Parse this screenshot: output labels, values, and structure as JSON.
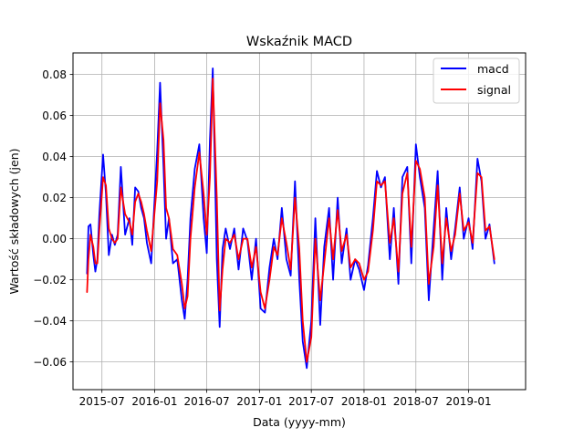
{
  "chart_data": {
    "type": "line",
    "title": "Wskaźnik MACD",
    "xlabel": "Data (yyyy-mm)",
    "ylabel": "Wartość składowych (jen)",
    "xlim": [
      "2015-03-22",
      "2019-07-19"
    ],
    "ylim": [
      -0.0735,
      0.0905
    ],
    "x_ticks": [
      "2015-07-01",
      "2016-01-01",
      "2016-07-01",
      "2017-01-01",
      "2017-07-01",
      "2018-01-01",
      "2018-07-01",
      "2019-01-01"
    ],
    "x_tick_labels": [
      "2015-07",
      "2016-01",
      "2016-07",
      "2017-01",
      "2017-07",
      "2018-01",
      "2018-07",
      "2019-01"
    ],
    "y_ticks": [
      -0.06,
      -0.04,
      -0.02,
      0.0,
      0.02,
      0.04,
      0.06,
      0.08
    ],
    "y_tick_labels": [
      "−0.06",
      "−0.04",
      "−0.02",
      "0.00",
      "0.02",
      "0.04",
      "0.06",
      "0.08"
    ],
    "grid": true,
    "legend_position": "top-right",
    "series": [
      {
        "name": "macd",
        "color": "#0000ff",
        "x": [
          "2015-05-10",
          "2015-05-15",
          "2015-05-22",
          "2015-06-01",
          "2015-06-08",
          "2015-06-15",
          "2015-06-22",
          "2015-07-05",
          "2015-07-15",
          "2015-07-25",
          "2015-08-05",
          "2015-08-15",
          "2015-08-25",
          "2015-09-05",
          "2015-09-20",
          "2015-10-05",
          "2015-10-15",
          "2015-10-25",
          "2015-11-05",
          "2015-11-15",
          "2015-11-25",
          "2015-12-05",
          "2015-12-20",
          "2016-01-10",
          "2016-01-20",
          "2016-02-01",
          "2016-02-10",
          "2016-02-20",
          "2016-03-05",
          "2016-03-20",
          "2016-04-05",
          "2016-04-15",
          "2016-04-25",
          "2016-05-05",
          "2016-05-20",
          "2016-06-05",
          "2016-06-20",
          "2016-07-01",
          "2016-07-12",
          "2016-07-22",
          "2016-08-05",
          "2016-08-15",
          "2016-08-25",
          "2016-09-05",
          "2016-09-20",
          "2016-10-05",
          "2016-10-20",
          "2016-11-05",
          "2016-11-20",
          "2016-12-05",
          "2016-12-20",
          "2017-01-05",
          "2017-01-20",
          "2017-02-05",
          "2017-02-20",
          "2017-03-05",
          "2017-03-20",
          "2017-04-05",
          "2017-04-20",
          "2017-05-05",
          "2017-05-20",
          "2017-06-01",
          "2017-06-15",
          "2017-07-01",
          "2017-07-15",
          "2017-08-01",
          "2017-08-15",
          "2017-09-01",
          "2017-09-15",
          "2017-10-01",
          "2017-10-15",
          "2017-11-01",
          "2017-11-15",
          "2017-12-01",
          "2017-12-15",
          "2018-01-01",
          "2018-01-15",
          "2018-02-01",
          "2018-02-15",
          "2018-03-01",
          "2018-03-15",
          "2018-04-01",
          "2018-04-15",
          "2018-05-01",
          "2018-05-15",
          "2018-06-01",
          "2018-06-15",
          "2018-07-01",
          "2018-07-15",
          "2018-08-01",
          "2018-08-15",
          "2018-09-01",
          "2018-09-15",
          "2018-10-01",
          "2018-10-15",
          "2018-11-01",
          "2018-11-15",
          "2018-12-01",
          "2018-12-15",
          "2019-01-01",
          "2019-01-15",
          "2019-02-01",
          "2019-02-15",
          "2019-03-01",
          "2019-03-15",
          "2019-04-01"
        ],
        "y": [
          -0.017,
          0.006,
          0.007,
          -0.008,
          -0.016,
          -0.01,
          0.012,
          0.041,
          0.022,
          -0.008,
          0.002,
          -0.003,
          0.002,
          0.035,
          0.002,
          0.01,
          -0.003,
          0.025,
          0.023,
          0.015,
          0.01,
          -0.002,
          -0.012,
          0.043,
          0.076,
          0.035,
          0.0,
          0.01,
          -0.012,
          -0.01,
          -0.03,
          -0.039,
          -0.02,
          0.01,
          0.034,
          0.046,
          0.01,
          -0.007,
          0.048,
          0.083,
          -0.01,
          -0.043,
          -0.005,
          0.005,
          -0.005,
          0.005,
          -0.015,
          0.005,
          -0.001,
          -0.02,
          0.0,
          -0.034,
          -0.036,
          -0.014,
          0.0,
          -0.01,
          0.015,
          -0.01,
          -0.018,
          0.028,
          -0.02,
          -0.05,
          -0.063,
          -0.04,
          0.01,
          -0.042,
          -0.004,
          0.015,
          -0.02,
          0.02,
          -0.012,
          0.005,
          -0.02,
          -0.01,
          -0.015,
          -0.025,
          -0.013,
          0.01,
          0.033,
          0.025,
          0.03,
          -0.01,
          0.015,
          -0.022,
          0.03,
          0.035,
          -0.012,
          0.046,
          0.03,
          0.015,
          -0.03,
          0.005,
          0.033,
          -0.02,
          0.015,
          -0.01,
          0.005,
          0.025,
          0.0,
          0.01,
          -0.005,
          0.039,
          0.028,
          0.0,
          0.007,
          -0.012
        ]
      },
      {
        "name": "signal",
        "color": "#ff0000",
        "x": [
          "2015-05-10",
          "2015-05-15",
          "2015-05-22",
          "2015-06-01",
          "2015-06-08",
          "2015-06-15",
          "2015-06-22",
          "2015-07-05",
          "2015-07-15",
          "2015-07-25",
          "2015-08-05",
          "2015-08-15",
          "2015-08-25",
          "2015-09-05",
          "2015-09-20",
          "2015-10-05",
          "2015-10-15",
          "2015-10-25",
          "2015-11-05",
          "2015-11-15",
          "2015-11-25",
          "2015-12-05",
          "2015-12-20",
          "2016-01-10",
          "2016-01-20",
          "2016-02-01",
          "2016-02-10",
          "2016-02-20",
          "2016-03-05",
          "2016-03-20",
          "2016-04-05",
          "2016-04-15",
          "2016-04-25",
          "2016-05-05",
          "2016-05-20",
          "2016-06-05",
          "2016-06-20",
          "2016-07-01",
          "2016-07-12",
          "2016-07-22",
          "2016-08-05",
          "2016-08-15",
          "2016-08-25",
          "2016-09-05",
          "2016-09-20",
          "2016-10-05",
          "2016-10-20",
          "2016-11-05",
          "2016-11-20",
          "2016-12-05",
          "2016-12-20",
          "2017-01-05",
          "2017-01-20",
          "2017-02-05",
          "2017-02-20",
          "2017-03-05",
          "2017-03-20",
          "2017-04-05",
          "2017-04-20",
          "2017-05-05",
          "2017-05-20",
          "2017-06-01",
          "2017-06-15",
          "2017-07-01",
          "2017-07-15",
          "2017-08-01",
          "2017-08-15",
          "2017-09-01",
          "2017-09-15",
          "2017-10-01",
          "2017-10-15",
          "2017-11-01",
          "2017-11-15",
          "2017-12-01",
          "2017-12-15",
          "2018-01-01",
          "2018-01-15",
          "2018-02-01",
          "2018-02-15",
          "2018-03-01",
          "2018-03-15",
          "2018-04-01",
          "2018-04-15",
          "2018-05-01",
          "2018-05-15",
          "2018-06-01",
          "2018-06-15",
          "2018-07-01",
          "2018-07-15",
          "2018-08-01",
          "2018-08-15",
          "2018-09-01",
          "2018-09-15",
          "2018-10-01",
          "2018-10-15",
          "2018-11-01",
          "2018-11-15",
          "2018-12-01",
          "2018-12-15",
          "2019-01-01",
          "2019-01-15",
          "2019-02-01",
          "2019-02-15",
          "2019-03-01",
          "2019-03-15",
          "2019-04-01"
        ],
        "y": [
          -0.026,
          -0.01,
          0.002,
          -0.004,
          -0.012,
          -0.012,
          0.004,
          0.03,
          0.026,
          0.005,
          0.0,
          -0.002,
          0.0,
          0.025,
          0.012,
          0.008,
          0.002,
          0.018,
          0.022,
          0.018,
          0.012,
          0.004,
          -0.006,
          0.028,
          0.066,
          0.048,
          0.015,
          0.01,
          -0.005,
          -0.008,
          -0.022,
          -0.034,
          -0.028,
          0.0,
          0.025,
          0.042,
          0.022,
          0.002,
          0.03,
          0.078,
          0.02,
          -0.035,
          -0.015,
          0.0,
          -0.002,
          0.002,
          -0.01,
          0.0,
          0.0,
          -0.014,
          -0.004,
          -0.026,
          -0.034,
          -0.02,
          -0.004,
          -0.008,
          0.01,
          -0.002,
          -0.015,
          0.02,
          -0.005,
          -0.04,
          -0.06,
          -0.048,
          0.0,
          -0.03,
          -0.012,
          0.01,
          -0.01,
          0.014,
          -0.006,
          0.002,
          -0.014,
          -0.01,
          -0.012,
          -0.02,
          -0.016,
          0.004,
          0.028,
          0.026,
          0.028,
          -0.002,
          0.01,
          -0.016,
          0.022,
          0.032,
          -0.004,
          0.038,
          0.034,
          0.02,
          -0.022,
          -0.004,
          0.026,
          -0.012,
          0.01,
          -0.006,
          0.002,
          0.022,
          0.004,
          0.008,
          -0.002,
          0.032,
          0.03,
          0.004,
          0.006,
          -0.01
        ]
      }
    ]
  }
}
